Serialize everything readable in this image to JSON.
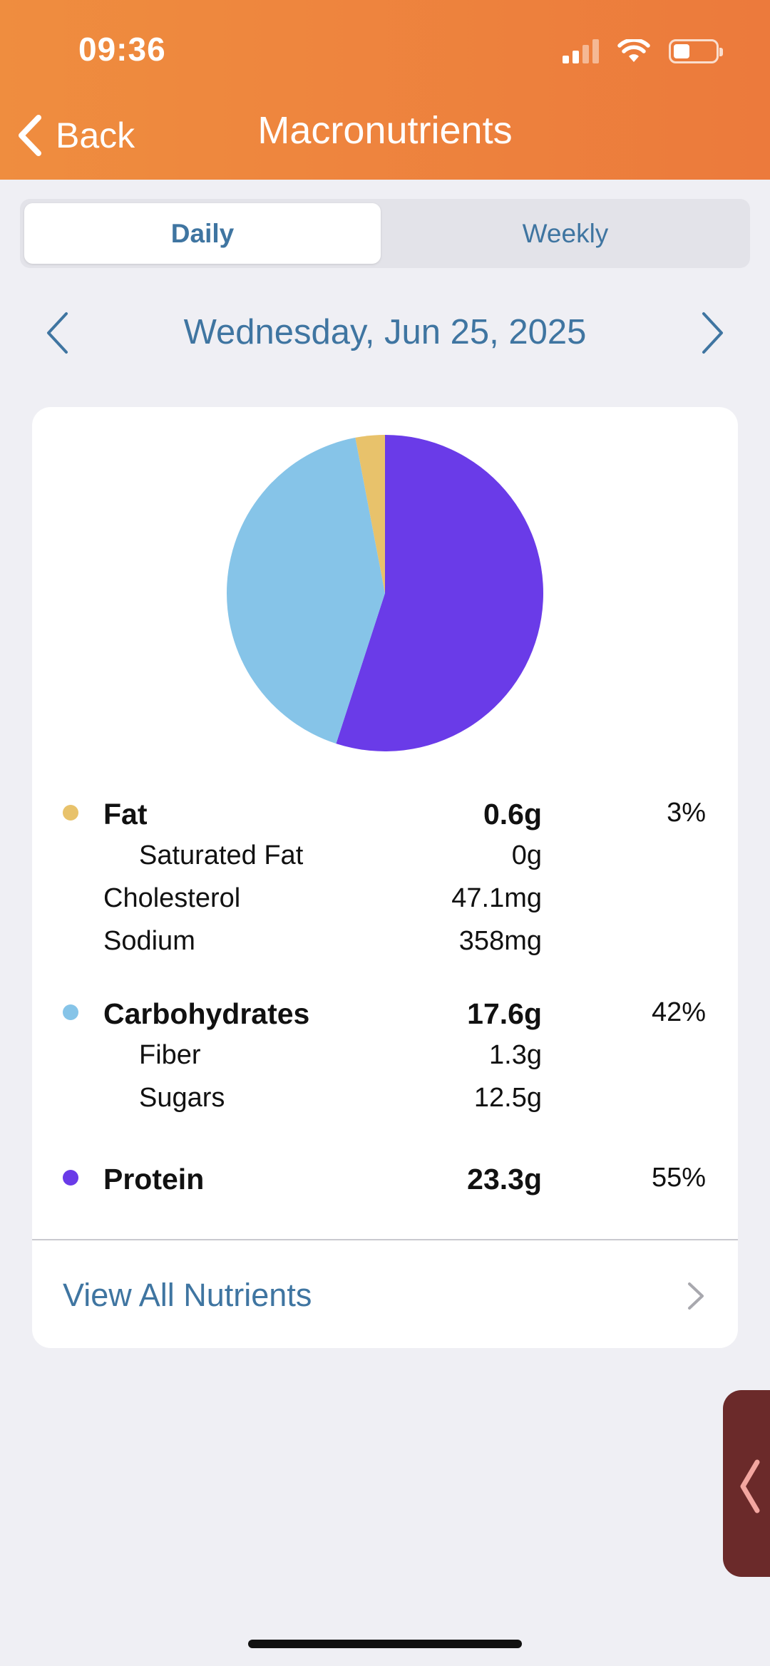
{
  "status_bar": {
    "time": "09:36"
  },
  "nav": {
    "back_label": "Back",
    "title": "Macronutrients"
  },
  "segments": {
    "daily": "Daily",
    "weekly": "Weekly",
    "selected": "Daily"
  },
  "date": {
    "label": "Wednesday, Jun 25, 2025"
  },
  "colors": {
    "fat": "#e8c26b",
    "carbohydrates": "#86c4e8",
    "protein": "#6a3be8",
    "accent": "#3f75a1",
    "header": "#ec7a3c"
  },
  "chart_data": {
    "type": "pie",
    "categories": [
      "Protein",
      "Carbohydrates",
      "Fat"
    ],
    "values": [
      55,
      42,
      3
    ],
    "colors": [
      "#6a3be8",
      "#86c4e8",
      "#e8c26b"
    ],
    "start": "top, clockwise"
  },
  "nutrients": {
    "fat": {
      "name": "Fat",
      "amount": "0.6g",
      "pct": "3%"
    },
    "saturated_fat": {
      "name": "Saturated Fat",
      "amount": "0g"
    },
    "cholesterol": {
      "name": "Cholesterol",
      "amount": "47.1mg"
    },
    "sodium": {
      "name": "Sodium",
      "amount": "358mg"
    },
    "carbohydrates": {
      "name": "Carbohydrates",
      "amount": "17.6g",
      "pct": "42%"
    },
    "fiber": {
      "name": "Fiber",
      "amount": "1.3g"
    },
    "sugars": {
      "name": "Sugars",
      "amount": "12.5g"
    },
    "protein": {
      "name": "Protein",
      "amount": "23.3g",
      "pct": "55%"
    }
  },
  "footer_link": {
    "label": "View All Nutrients"
  }
}
